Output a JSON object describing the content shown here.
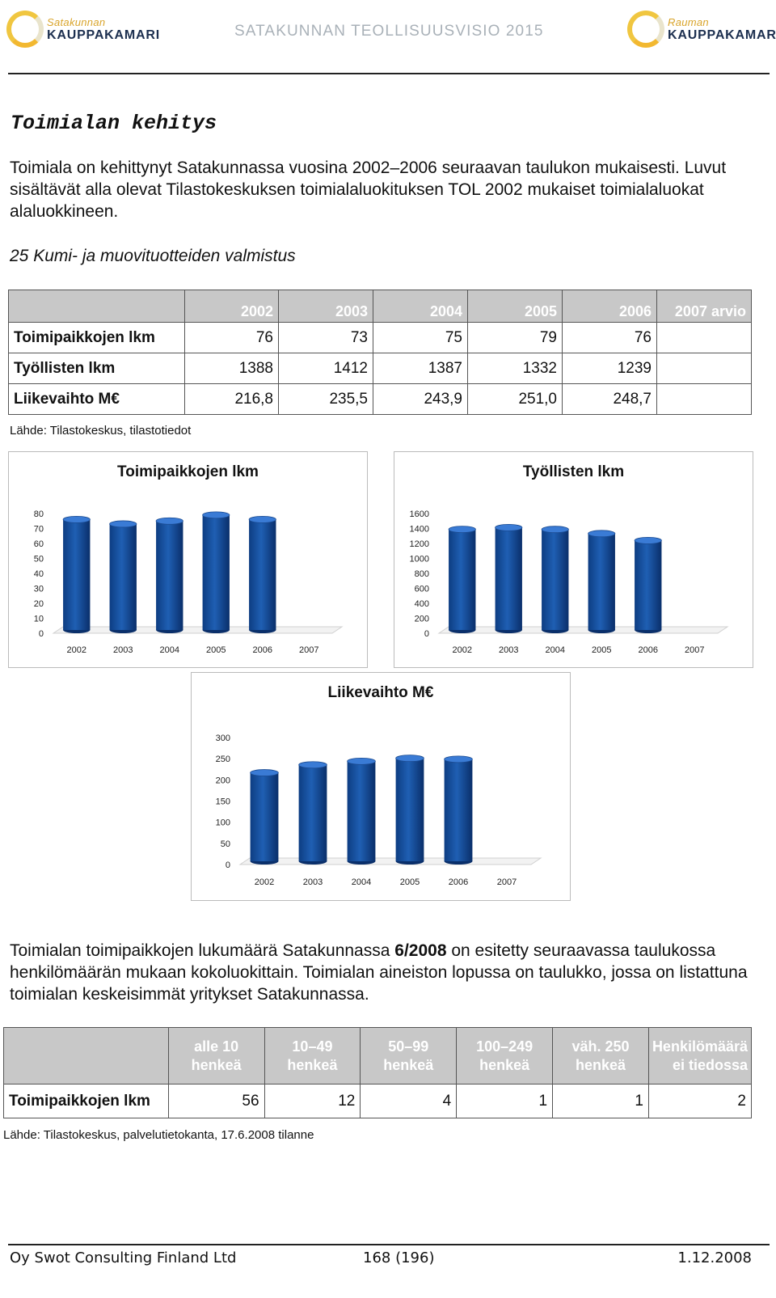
{
  "header": {
    "logo_left": {
      "small": "Satakunnan",
      "big": "KAUPPAKAMARI"
    },
    "logo_right": {
      "small": "Rauman",
      "big": "KAUPPAKAMARI"
    },
    "title": "SATAKUNNAN TEOLLISUUSVISIO 2015"
  },
  "section_title": "Toimialan kehitys",
  "intro_text": "Toimiala on kehittynyt Satakunnassa vuosina 2002–2006  seuraavan taulukon mukaisesti. Luvut sisältävät alla olevat Tilastokeskuksen toimialaluokituksen TOL 2002 mukaiset toimialaluokat alaluokkineen.",
  "subheading": "25 Kumi- ja muovituotteiden valmistus",
  "table1": {
    "headers": [
      "",
      "2002",
      "2003",
      "2004",
      "2005",
      "2006",
      "2007 arvio"
    ],
    "rows": [
      [
        "Toimipaikkojen lkm",
        "76",
        "73",
        "75",
        "79",
        "76",
        ""
      ],
      [
        "Työllisten lkm",
        "1388",
        "1412",
        "1387",
        "1332",
        "1239",
        ""
      ],
      [
        "Liikevaihto M€",
        "216,8",
        "235,5",
        "243,9",
        "251,0",
        "248,7",
        ""
      ]
    ]
  },
  "source1": "Lähde: Tilastokeskus, tilastotiedot",
  "chart_data": [
    {
      "type": "bar",
      "title": "Toimipaikkojen lkm",
      "categories": [
        "2002",
        "2003",
        "2004",
        "2005",
        "2006",
        "2007"
      ],
      "values": [
        76,
        73,
        75,
        79,
        76,
        null
      ],
      "ylim": [
        0,
        80
      ],
      "yticks": [
        0,
        10,
        20,
        30,
        40,
        50,
        60,
        70,
        80
      ],
      "color": "#1f5fb3"
    },
    {
      "type": "bar",
      "title": "Työllisten lkm",
      "categories": [
        "2002",
        "2003",
        "2004",
        "2005",
        "2006",
        "2007"
      ],
      "values": [
        1388,
        1412,
        1387,
        1332,
        1239,
        null
      ],
      "ylim": [
        0,
        1600
      ],
      "yticks": [
        0,
        200,
        400,
        600,
        800,
        1000,
        1200,
        1400,
        1600
      ],
      "color": "#1f5fb3"
    },
    {
      "type": "bar",
      "title": "Liikevaihto M€",
      "categories": [
        "2002",
        "2003",
        "2004",
        "2005",
        "2006",
        "2007"
      ],
      "values": [
        216.8,
        235.5,
        243.9,
        251.0,
        248.7,
        null
      ],
      "ylim": [
        0,
        300
      ],
      "yticks": [
        0,
        50,
        100,
        150,
        200,
        250,
        300
      ],
      "color": "#1f5fb3"
    }
  ],
  "para2": {
    "before": "Toimialan toimipaikkojen lukumäärä Satakunnassa ",
    "bold": "6/2008",
    "after": " on esitetty seuraavassa taulukossa henkilömäärän mukaan kokoluokittain. Toimialan aineiston lopussa on taulukko, jossa on listattuna toimialan keskeisimmät yritykset Satakunnassa."
  },
  "table2": {
    "headers": [
      "",
      "alle 10 henkeä",
      "10–49 henkeä",
      "50–99 henkeä",
      "100–249 henkeä",
      "väh. 250 henkeä",
      "Henkilömäärä ei tiedossa"
    ],
    "rows": [
      [
        "Toimipaikkojen lkm",
        "56",
        "12",
        "4",
        "1",
        "1",
        "2"
      ]
    ]
  },
  "source2": "Lähde: Tilastokeskus, palvelutietokanta, 17.6.2008 tilanne",
  "footer": {
    "left": "Oy Swot Consulting Finland Ltd",
    "center": "168 (196)",
    "right": "1.12.2008"
  }
}
